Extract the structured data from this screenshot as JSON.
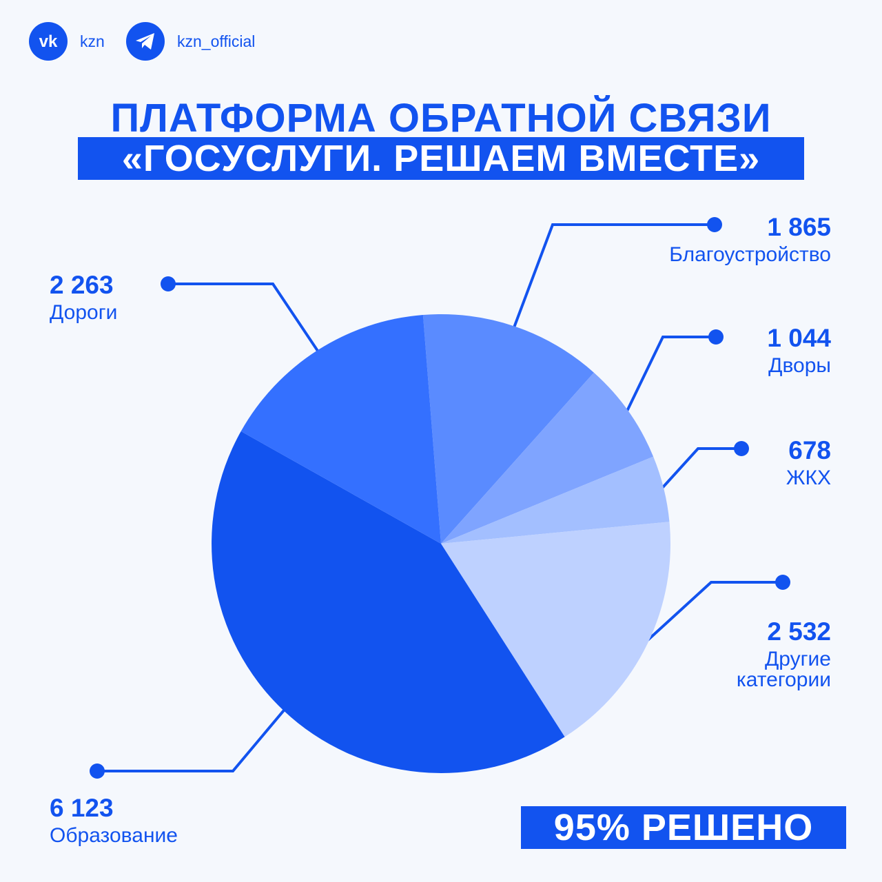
{
  "social": [
    {
      "icon": "vk-icon",
      "handle": "kzn"
    },
    {
      "icon": "telegram-icon",
      "handle": "kzn_official"
    }
  ],
  "title_line1": "ПЛАТФОРМА ОБРАТНОЙ СВЯЗИ",
  "title_line2": "«ГОСУСЛУГИ. РЕШАЕМ ВМЕСТЕ»",
  "badge": "95% РЕШЕНО",
  "colors": {
    "background": "#f5f8fd",
    "accent": "#1253ef",
    "slices": [
      "#5a8bff",
      "#7fa4ff",
      "#a3bfff",
      "#bed1ff",
      "#1253ef",
      "#3470ff"
    ]
  },
  "chart_data": {
    "type": "pie",
    "labels": [
      "Благоустройство",
      "Дворы",
      "ЖКХ",
      "Другие категории",
      "Образование",
      "Дороги"
    ],
    "values": [
      1865,
      1044,
      678,
      2532,
      6123,
      2263
    ],
    "value_labels": [
      "1 865",
      "1 044",
      "678",
      "2 532",
      "6 123",
      "2 263"
    ]
  }
}
